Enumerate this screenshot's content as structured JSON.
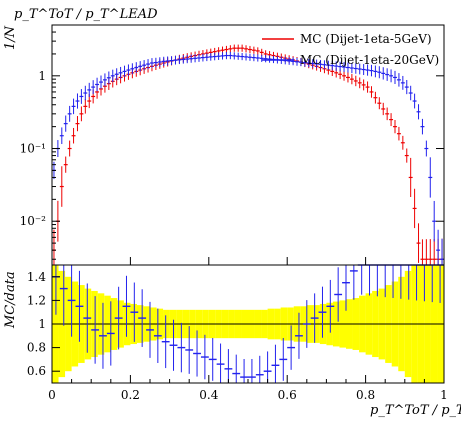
{
  "chart_data": [
    {
      "type": "line",
      "panel": "main",
      "title": "p_T^ToT / p_T^LEAD",
      "ylabel": "1/N",
      "xlim": [
        0,
        1
      ],
      "ylim": [
        0.0025,
        5.0
      ],
      "log_y": true,
      "y_tick_labels": [
        "10⁻²",
        "10⁻¹",
        "1"
      ],
      "y_tick_values": [
        0.01,
        0.1,
        1
      ],
      "legend_position": "top-right",
      "colors": {
        "series_1": "#ee0000",
        "series_2": "#2222ee",
        "data_bar": "#111111"
      },
      "series": [
        {
          "name": "MC (Dijet-1eta-5GeV)",
          "x": [
            0.005,
            0.015,
            0.025,
            0.035,
            0.045,
            0.055,
            0.065,
            0.075,
            0.085,
            0.095,
            0.105,
            0.115,
            0.125,
            0.135,
            0.145,
            0.155,
            0.165,
            0.175,
            0.185,
            0.195,
            0.205,
            0.215,
            0.225,
            0.235,
            0.245,
            0.255,
            0.265,
            0.275,
            0.285,
            0.295,
            0.305,
            0.315,
            0.325,
            0.335,
            0.345,
            0.355,
            0.365,
            0.375,
            0.385,
            0.395,
            0.405,
            0.415,
            0.425,
            0.435,
            0.445,
            0.455,
            0.465,
            0.475,
            0.485,
            0.495,
            0.505,
            0.515,
            0.525,
            0.535,
            0.545,
            0.555,
            0.565,
            0.575,
            0.585,
            0.595,
            0.605,
            0.615,
            0.625,
            0.635,
            0.645,
            0.655,
            0.665,
            0.675,
            0.685,
            0.695,
            0.705,
            0.715,
            0.725,
            0.735,
            0.745,
            0.755,
            0.765,
            0.775,
            0.785,
            0.795,
            0.805,
            0.815,
            0.825,
            0.835,
            0.845,
            0.855,
            0.865,
            0.875,
            0.885,
            0.895,
            0.905,
            0.915,
            0.925,
            0.935,
            0.945,
            0.955,
            0.965,
            0.975,
            0.985,
            0.995
          ],
          "values": [
            0.004,
            0.01,
            0.03,
            0.06,
            0.1,
            0.15,
            0.22,
            0.3,
            0.38,
            0.45,
            0.52,
            0.6,
            0.66,
            0.72,
            0.78,
            0.84,
            0.9,
            0.95,
            1.0,
            1.05,
            1.1,
            1.15,
            1.2,
            1.25,
            1.3,
            1.35,
            1.4,
            1.45,
            1.5,
            1.55,
            1.6,
            1.65,
            1.7,
            1.75,
            1.8,
            1.85,
            1.9,
            1.95,
            2.0,
            2.05,
            2.1,
            2.15,
            2.2,
            2.25,
            2.3,
            2.35,
            2.4,
            2.4,
            2.4,
            2.35,
            2.3,
            2.25,
            2.2,
            2.1,
            2.0,
            1.95,
            1.9,
            1.85,
            1.8,
            1.75,
            1.7,
            1.65,
            1.6,
            1.55,
            1.5,
            1.45,
            1.4,
            1.35,
            1.3,
            1.25,
            1.2,
            1.15,
            1.1,
            1.05,
            1.0,
            0.95,
            0.9,
            0.85,
            0.8,
            0.75,
            0.7,
            0.6,
            0.5,
            0.42,
            0.35,
            0.3,
            0.25,
            0.2,
            0.16,
            0.12,
            0.08,
            0.04,
            0.015,
            0.005,
            0.003,
            0.003,
            0.003,
            0.003,
            0.003,
            0.003
          ]
        },
        {
          "name": "MC (Dijet-1eta-20GeV)",
          "x": [
            0.005,
            0.015,
            0.025,
            0.035,
            0.045,
            0.055,
            0.065,
            0.075,
            0.085,
            0.095,
            0.105,
            0.115,
            0.125,
            0.135,
            0.145,
            0.155,
            0.165,
            0.175,
            0.185,
            0.195,
            0.205,
            0.215,
            0.225,
            0.235,
            0.245,
            0.255,
            0.265,
            0.275,
            0.285,
            0.295,
            0.305,
            0.315,
            0.325,
            0.335,
            0.345,
            0.355,
            0.365,
            0.375,
            0.385,
            0.395,
            0.405,
            0.415,
            0.425,
            0.435,
            0.445,
            0.455,
            0.465,
            0.475,
            0.485,
            0.495,
            0.505,
            0.515,
            0.525,
            0.535,
            0.545,
            0.555,
            0.565,
            0.575,
            0.585,
            0.595,
            0.605,
            0.615,
            0.625,
            0.635,
            0.645,
            0.655,
            0.665,
            0.675,
            0.685,
            0.695,
            0.705,
            0.715,
            0.725,
            0.735,
            0.745,
            0.755,
            0.765,
            0.775,
            0.785,
            0.795,
            0.805,
            0.815,
            0.825,
            0.835,
            0.845,
            0.855,
            0.865,
            0.875,
            0.885,
            0.895,
            0.905,
            0.915,
            0.925,
            0.935,
            0.945,
            0.955,
            0.965,
            0.975,
            0.985,
            0.995
          ],
          "values": [
            0.05,
            0.1,
            0.15,
            0.22,
            0.3,
            0.38,
            0.45,
            0.52,
            0.58,
            0.64,
            0.7,
            0.76,
            0.82,
            0.88,
            0.94,
            1.0,
            1.05,
            1.1,
            1.15,
            1.2,
            1.25,
            1.3,
            1.35,
            1.4,
            1.45,
            1.5,
            1.52,
            1.55,
            1.58,
            1.6,
            1.62,
            1.64,
            1.66,
            1.68,
            1.7,
            1.72,
            1.74,
            1.76,
            1.78,
            1.8,
            1.82,
            1.84,
            1.86,
            1.88,
            1.9,
            1.9,
            1.88,
            1.86,
            1.84,
            1.82,
            1.8,
            1.78,
            1.76,
            1.74,
            1.72,
            1.7,
            1.68,
            1.66,
            1.64,
            1.62,
            1.6,
            1.58,
            1.56,
            1.54,
            1.52,
            1.5,
            1.48,
            1.46,
            1.44,
            1.42,
            1.4,
            1.38,
            1.36,
            1.34,
            1.32,
            1.3,
            1.28,
            1.26,
            1.24,
            1.22,
            1.2,
            1.18,
            1.15,
            1.12,
            1.08,
            1.04,
            1.0,
            0.95,
            0.88,
            0.8,
            0.7,
            0.58,
            0.45,
            0.32,
            0.2,
            0.1,
            0.04,
            0.01,
            0.004,
            0.003
          ]
        }
      ]
    },
    {
      "type": "line",
      "panel": "ratio",
      "ylabel": "MC/data",
      "xlabel": "p_T^ToT / p_T^LEAD",
      "xlim": [
        0,
        1
      ],
      "ylim": [
        0.5,
        1.5
      ],
      "x_tick_labels": [
        "0",
        "0.2",
        "0.4",
        "0.6",
        "0.8",
        "1"
      ],
      "x_tick_values": [
        0,
        0.2,
        0.4,
        0.6,
        0.8,
        1
      ],
      "y_tick_labels": [
        "0.6",
        "0.8",
        "1",
        "1.2",
        "1.4"
      ],
      "y_tick_values": [
        0.6,
        0.8,
        1.0,
        1.2,
        1.4
      ],
      "colors": {
        "uncertainty_band": "#ffff00",
        "series_1": "#ee0000",
        "series_2": "#2222ee"
      },
      "band_half_width": [
        0.5,
        0.45,
        0.4,
        0.36,
        0.33,
        0.3,
        0.28,
        0.26,
        0.24,
        0.22,
        0.2,
        0.18,
        0.17,
        0.16,
        0.15,
        0.14,
        0.13,
        0.12,
        0.12,
        0.12,
        0.12,
        0.12,
        0.12,
        0.12,
        0.12,
        0.12,
        0.12,
        0.12,
        0.12,
        0.12,
        0.12,
        0.12,
        0.12,
        0.13,
        0.13,
        0.14,
        0.14,
        0.15,
        0.15,
        0.16,
        0.16,
        0.17,
        0.18,
        0.19,
        0.2,
        0.21,
        0.22,
        0.24,
        0.26,
        0.28,
        0.3,
        0.33,
        0.36,
        0.4,
        0.45,
        0.5,
        0.5,
        0.5,
        0.5,
        0.5
      ],
      "series": [
        {
          "name": "MC (Dijet-1eta-20GeV)",
          "x": [
            0.01,
            0.03,
            0.05,
            0.07,
            0.09,
            0.11,
            0.13,
            0.15,
            0.17,
            0.19,
            0.21,
            0.23,
            0.25,
            0.27,
            0.29,
            0.31,
            0.33,
            0.35,
            0.37,
            0.39,
            0.41,
            0.43,
            0.45,
            0.47,
            0.49,
            0.51,
            0.53,
            0.55,
            0.57,
            0.59,
            0.61,
            0.63,
            0.65,
            0.67,
            0.69,
            0.71,
            0.73,
            0.75,
            0.77,
            0.79,
            0.81,
            0.83,
            0.85,
            0.87,
            0.89,
            0.91,
            0.93,
            0.95,
            0.97,
            0.99
          ],
          "values": [
            1.4,
            1.3,
            1.2,
            1.15,
            1.05,
            0.95,
            0.9,
            0.92,
            1.05,
            1.15,
            1.1,
            1.05,
            0.95,
            0.9,
            0.85,
            0.82,
            0.8,
            0.78,
            0.75,
            0.72,
            0.7,
            0.66,
            0.62,
            0.58,
            0.55,
            0.55,
            0.57,
            0.6,
            0.65,
            0.7,
            0.8,
            0.9,
            1.0,
            1.05,
            1.1,
            1.15,
            1.25,
            1.35,
            1.45,
            1.5,
            1.5,
            1.5,
            1.5,
            1.5,
            1.5,
            1.5,
            1.5,
            1.5,
            1.5,
            1.5
          ]
        }
      ]
    }
  ],
  "legend": {
    "series_1": "MC (Dijet-1eta-5GeV)",
    "series_2": "MC (Dijet-1eta-20GeV)"
  },
  "titles": {
    "top_label": "p_T^ToT / p_T^LEAD",
    "main_ylabel": "1/N",
    "ratio_ylabel": "MC/data",
    "bottom_label": "p_T^ToT / p_T^LEAD"
  }
}
